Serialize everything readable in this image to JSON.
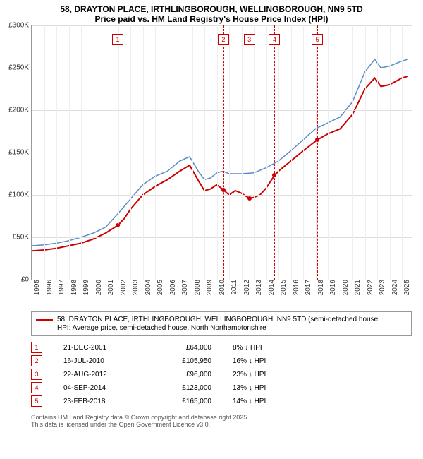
{
  "title": {
    "line1": "58, DRAYTON PLACE, IRTHLINGBOROUGH, WELLINGBOROUGH, NN9 5TD",
    "line2": "Price paid vs. HM Land Registry's House Price Index (HPI)"
  },
  "chart": {
    "type": "line",
    "x_min": 1995,
    "x_max": 2025.8,
    "y_min": 0,
    "y_max": 300000,
    "y_ticks": [
      0,
      50000,
      100000,
      150000,
      200000,
      250000,
      300000
    ],
    "y_tick_labels": [
      "£0",
      "£50K",
      "£100K",
      "£150K",
      "£200K",
      "£250K",
      "£300K"
    ],
    "x_ticks": [
      1995,
      1996,
      1997,
      1998,
      1999,
      2000,
      2001,
      2002,
      2003,
      2004,
      2005,
      2006,
      2007,
      2008,
      2009,
      2010,
      2011,
      2012,
      2013,
      2014,
      2015,
      2016,
      2017,
      2018,
      2019,
      2020,
      2021,
      2022,
      2023,
      2024,
      2025
    ],
    "grid_color": "#dddddd",
    "background_color": "#ffffff",
    "series": {
      "hpi": {
        "label": "HPI: Average price, semi-detached house, North Northamptonshire",
        "color": "#5b8cc4",
        "width": 1.5,
        "data": [
          [
            1995,
            40000
          ],
          [
            1996,
            41000
          ],
          [
            1997,
            43000
          ],
          [
            1998,
            46000
          ],
          [
            1999,
            50000
          ],
          [
            2000,
            55000
          ],
          [
            2001,
            62000
          ],
          [
            2002,
            78000
          ],
          [
            2003,
            95000
          ],
          [
            2004,
            112000
          ],
          [
            2005,
            122000
          ],
          [
            2006,
            128000
          ],
          [
            2007,
            140000
          ],
          [
            2007.8,
            145000
          ],
          [
            2008.5,
            128000
          ],
          [
            2009,
            118000
          ],
          [
            2009.5,
            120000
          ],
          [
            2010,
            126000
          ],
          [
            2010.5,
            128000
          ],
          [
            2011,
            125000
          ],
          [
            2012,
            125000
          ],
          [
            2013,
            126000
          ],
          [
            2014,
            132000
          ],
          [
            2015,
            140000
          ],
          [
            2016,
            152000
          ],
          [
            2017,
            165000
          ],
          [
            2018,
            178000
          ],
          [
            2019,
            185000
          ],
          [
            2020,
            192000
          ],
          [
            2021,
            210000
          ],
          [
            2022,
            245000
          ],
          [
            2022.8,
            260000
          ],
          [
            2023.3,
            250000
          ],
          [
            2024,
            252000
          ],
          [
            2025,
            258000
          ],
          [
            2025.5,
            260000
          ]
        ]
      },
      "price_paid": {
        "label": "58, DRAYTON PLACE, IRTHLINGBOROUGH, WELLINGBOROUGH, NN9 5TD (semi-detached house",
        "color": "#cc0000",
        "width": 2,
        "data": [
          [
            1995,
            34000
          ],
          [
            1996,
            35000
          ],
          [
            1997,
            37000
          ],
          [
            1998,
            40000
          ],
          [
            1999,
            43000
          ],
          [
            2000,
            48000
          ],
          [
            2001,
            55000
          ],
          [
            2001.97,
            64000
          ],
          [
            2002.5,
            72000
          ],
          [
            2003,
            83000
          ],
          [
            2004,
            100000
          ],
          [
            2005,
            110000
          ],
          [
            2006,
            118000
          ],
          [
            2007,
            128000
          ],
          [
            2007.8,
            135000
          ],
          [
            2008.5,
            117000
          ],
          [
            2009,
            105000
          ],
          [
            2009.5,
            107000
          ],
          [
            2010,
            112000
          ],
          [
            2010.54,
            105950
          ],
          [
            2011,
            100000
          ],
          [
            2011.5,
            105000
          ],
          [
            2012,
            102000
          ],
          [
            2012.64,
            96000
          ],
          [
            2013,
            97000
          ],
          [
            2013.5,
            100000
          ],
          [
            2014,
            108000
          ],
          [
            2014.68,
            123000
          ],
          [
            2015,
            128000
          ],
          [
            2016,
            140000
          ],
          [
            2017,
            152000
          ],
          [
            2018.15,
            165000
          ],
          [
            2019,
            172000
          ],
          [
            2020,
            178000
          ],
          [
            2021,
            195000
          ],
          [
            2022,
            225000
          ],
          [
            2022.8,
            238000
          ],
          [
            2023.3,
            228000
          ],
          [
            2024,
            230000
          ],
          [
            2025,
            238000
          ],
          [
            2025.5,
            240000
          ]
        ]
      }
    },
    "sale_points": [
      {
        "x": 2001.97,
        "y": 64000,
        "color": "#cc0000"
      },
      {
        "x": 2010.54,
        "y": 105950,
        "color": "#cc0000"
      },
      {
        "x": 2012.64,
        "y": 96000,
        "color": "#cc0000"
      },
      {
        "x": 2014.68,
        "y": 123000,
        "color": "#cc0000"
      },
      {
        "x": 2018.15,
        "y": 165000,
        "color": "#cc0000"
      }
    ],
    "events": [
      {
        "n": "1",
        "x": 2001.97,
        "date": "21-DEC-2001",
        "price": "£64,000",
        "diff": "8% ↓ HPI"
      },
      {
        "n": "2",
        "x": 2010.54,
        "date": "16-JUL-2010",
        "price": "£105,950",
        "diff": "16% ↓ HPI"
      },
      {
        "n": "3",
        "x": 2012.64,
        "date": "22-AUG-2012",
        "price": "£96,000",
        "diff": "23% ↓ HPI"
      },
      {
        "n": "4",
        "x": 2014.68,
        "date": "04-SEP-2014",
        "price": "£123,000",
        "diff": "13% ↓ HPI"
      },
      {
        "n": "5",
        "x": 2018.15,
        "date": "23-FEB-2018",
        "price": "£165,000",
        "diff": "14% ↓ HPI"
      }
    ]
  },
  "footer": {
    "line1": "Contains HM Land Registry data © Crown copyright and database right 2025.",
    "line2": "This data is licensed under the Open Government Licence v3.0."
  }
}
